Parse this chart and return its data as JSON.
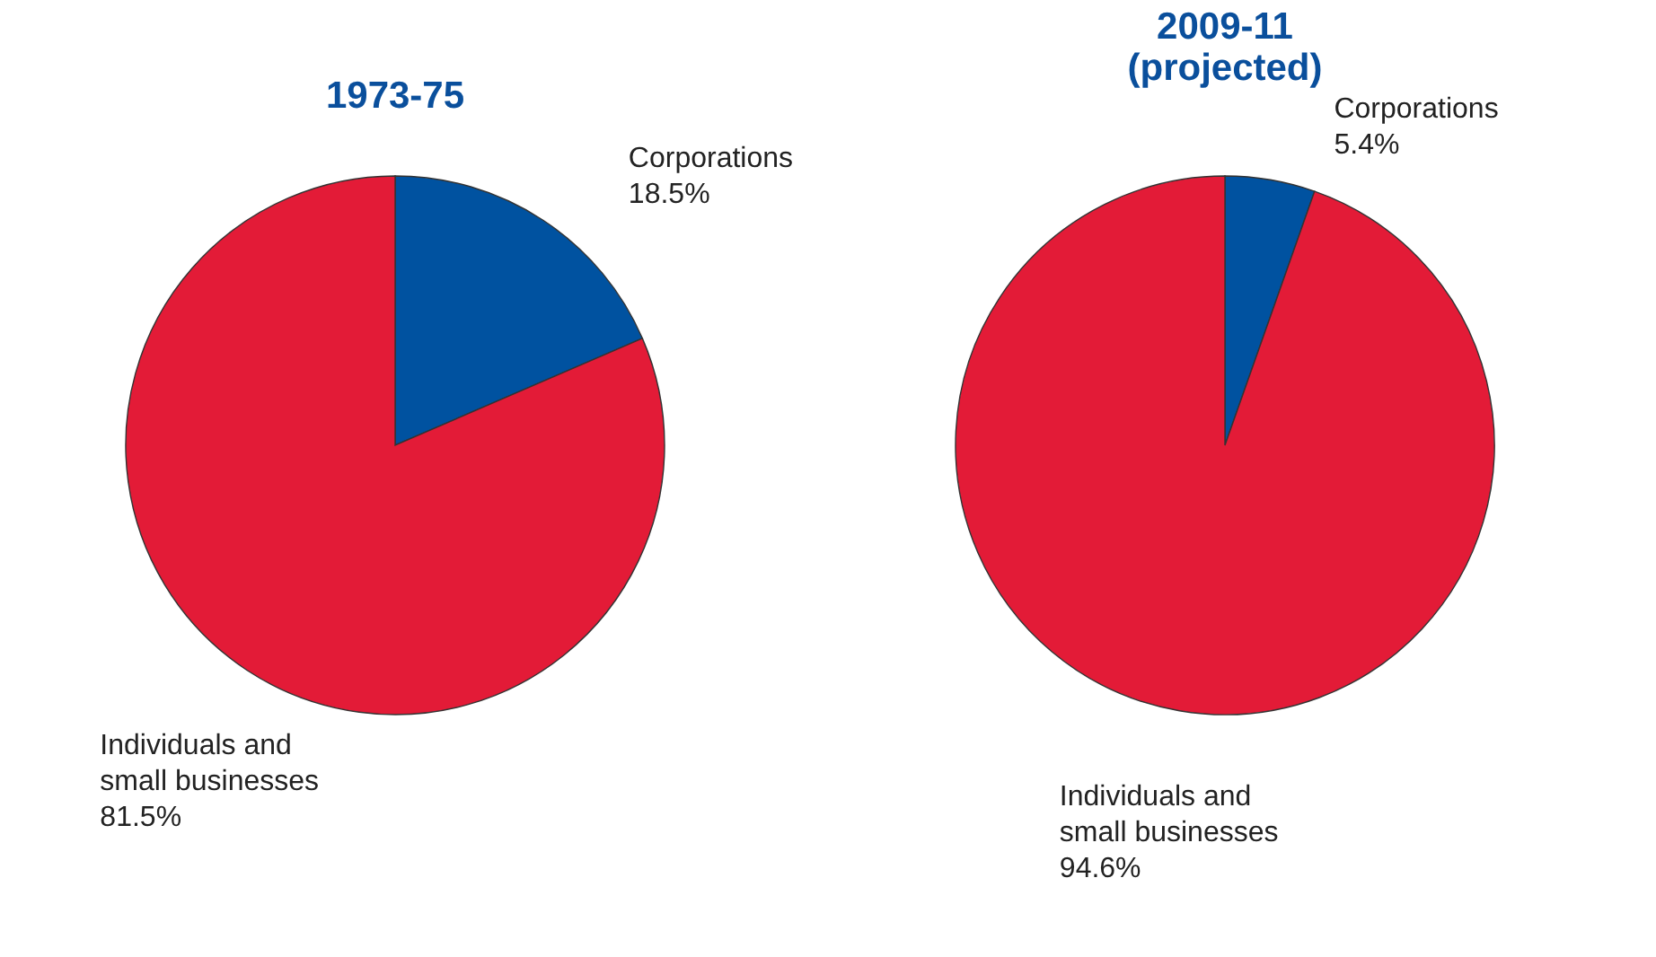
{
  "chart_data": [
    {
      "type": "pie",
      "title": "1973-75",
      "categories": [
        "Corporations",
        "Individuals and small businesses"
      ],
      "values": [
        18.5,
        81.5
      ],
      "colors": [
        "#0052a0",
        "#e31b37"
      ],
      "value_labels": [
        "18.5%",
        "81.5%"
      ]
    },
    {
      "type": "pie",
      "title": "2009-11\n(projected)",
      "categories": [
        "Corporations",
        "Individuals and small businesses"
      ],
      "values": [
        5.4,
        94.6
      ],
      "colors": [
        "#0052a0",
        "#e31b37"
      ],
      "value_labels": [
        "5.4%",
        "94.6%"
      ]
    }
  ]
}
